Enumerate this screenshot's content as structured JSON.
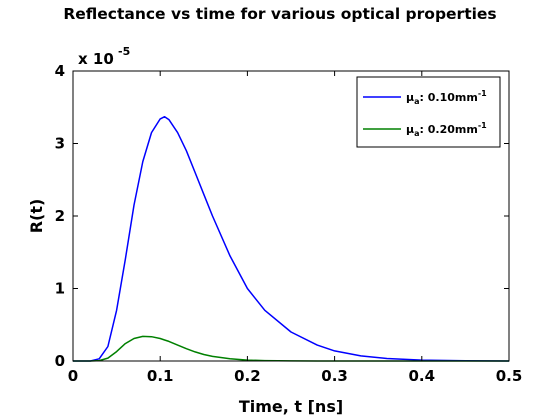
{
  "chart_data": {
    "type": "line",
    "title": "Reflectance vs time for various optical properties",
    "xlabel": "Time, t [ns]",
    "ylabel": "R(t)",
    "y_exponent_label": "x 10",
    "y_exponent_power": "-5",
    "xlim": [
      0,
      0.5
    ],
    "ylim": [
      0,
      4
    ],
    "x_ticks": [
      "0",
      "0.1",
      "0.2",
      "0.3",
      "0.4",
      "0.5"
    ],
    "y_ticks": [
      "0",
      "1",
      "2",
      "3",
      "4"
    ],
    "grid": false,
    "legend_position": "top-right",
    "x": [
      0.0,
      0.02,
      0.03,
      0.04,
      0.05,
      0.06,
      0.07,
      0.08,
      0.09,
      0.1,
      0.105,
      0.11,
      0.12,
      0.13,
      0.14,
      0.15,
      0.16,
      0.18,
      0.2,
      0.22,
      0.25,
      0.28,
      0.3,
      0.33,
      0.36,
      0.4,
      0.45,
      0.5
    ],
    "series": [
      {
        "legend_prefix": "μ",
        "legend_sub": "a",
        "legend_value": ": 0.10mm",
        "legend_sup": "-1",
        "color": "#0000ff",
        "values": [
          0.0,
          0.0,
          0.03,
          0.2,
          0.7,
          1.4,
          2.15,
          2.75,
          3.15,
          3.34,
          3.37,
          3.33,
          3.15,
          2.9,
          2.6,
          2.3,
          2.0,
          1.45,
          1.0,
          0.7,
          0.4,
          0.22,
          0.14,
          0.07,
          0.035,
          0.012,
          0.003,
          0.0
        ]
      },
      {
        "legend_prefix": "μ",
        "legend_sub": "a",
        "legend_value": ": 0.20mm",
        "legend_sup": "-1",
        "color": "#008000",
        "values": [
          0.0,
          0.0,
          0.005,
          0.04,
          0.13,
          0.24,
          0.31,
          0.34,
          0.335,
          0.31,
          0.29,
          0.27,
          0.22,
          0.17,
          0.125,
          0.09,
          0.063,
          0.03,
          0.013,
          0.005,
          0.001,
          0.0,
          0.0,
          0.0,
          0.0,
          0.0,
          0.0,
          0.0
        ]
      }
    ]
  }
}
